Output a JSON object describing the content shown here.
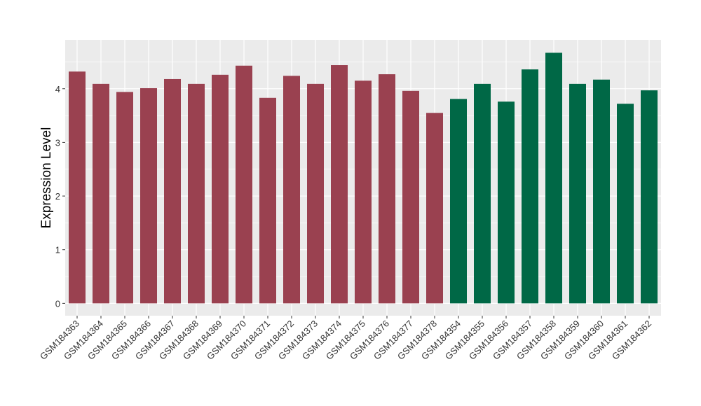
{
  "chart_data": {
    "type": "bar",
    "title": "",
    "xlabel": "",
    "ylabel": "Expression Level",
    "ylim": [
      -0.23,
      4.91
    ],
    "yticks": [
      0,
      1,
      2,
      3,
      4
    ],
    "grid": true,
    "legend": "none",
    "categories": [
      "GSM184363",
      "GSM184364",
      "GSM184365",
      "GSM184366",
      "GSM184367",
      "GSM184368",
      "GSM184369",
      "GSM184370",
      "GSM184371",
      "GSM184372",
      "GSM184373",
      "GSM184374",
      "GSM184375",
      "GSM184376",
      "GSM184377",
      "GSM184378",
      "GSM184354",
      "GSM184355",
      "GSM184356",
      "GSM184357",
      "GSM184358",
      "GSM184359",
      "GSM184360",
      "GSM184361",
      "GSM184362"
    ],
    "values": [
      4.32,
      4.09,
      3.94,
      4.01,
      4.18,
      4.09,
      4.26,
      4.43,
      3.83,
      4.24,
      4.09,
      4.44,
      4.15,
      4.27,
      3.96,
      3.55,
      3.81,
      4.09,
      3.76,
      4.36,
      4.67,
      4.09,
      4.17,
      3.72,
      3.97
    ],
    "groups": [
      0,
      0,
      0,
      0,
      0,
      0,
      0,
      0,
      0,
      0,
      0,
      0,
      0,
      0,
      0,
      0,
      1,
      1,
      1,
      1,
      1,
      1,
      1,
      1,
      1
    ],
    "colors": [
      "#9A4150",
      "#006846"
    ]
  }
}
